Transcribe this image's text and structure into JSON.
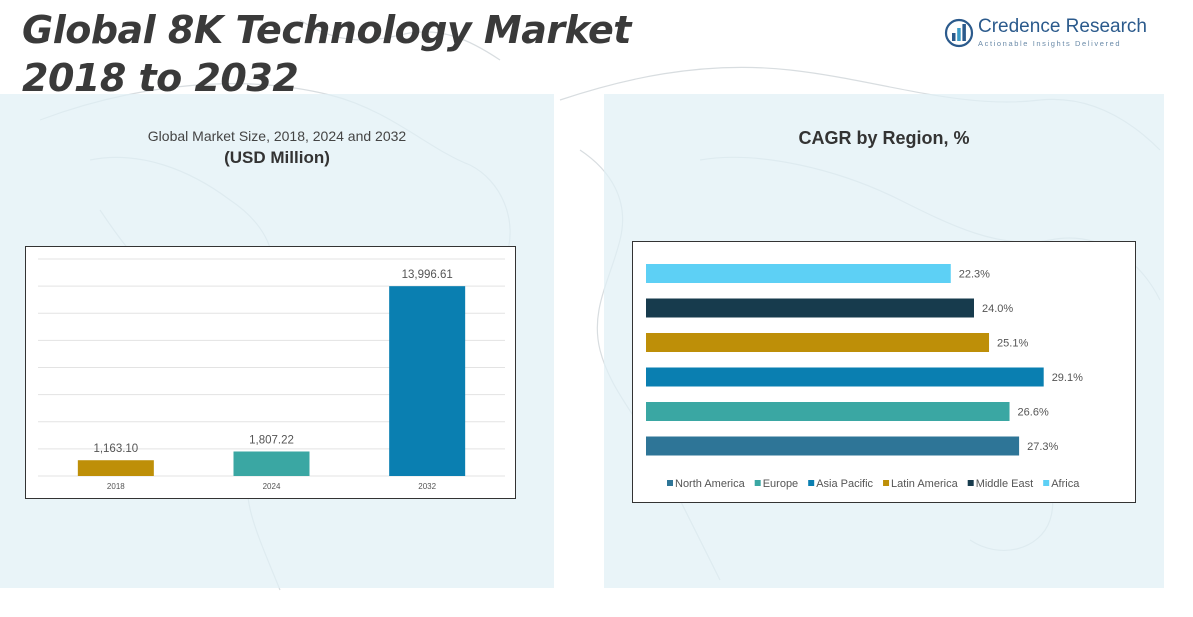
{
  "header": {
    "title_line1": "Global 8K Technology Market",
    "title_line2": "2018 to 2032"
  },
  "logo": {
    "name": "Credence Research",
    "tagline": "Actionable Insights Delivered",
    "icon": "bar-chart-circle-icon"
  },
  "colors": {
    "north_america": "#2e7597",
    "europe": "#3aa7a3",
    "asia_pacific": "#0a7fb1",
    "latin_america": "#be8f08",
    "middle_east": "#173b4d",
    "africa": "#5dd0f5",
    "panel_bg": "#e1f0f5",
    "title": "#3a3a3a"
  },
  "chart_data": [
    {
      "type": "bar",
      "title": "Global Market Size, 2018, 2024 and 2032",
      "subtitle": "(USD Million)",
      "categories": [
        "2018",
        "2024",
        "2032"
      ],
      "values": [
        1163.1,
        1807.22,
        13996.61
      ],
      "labels": [
        "1,163.10",
        "1,807.22",
        "13,996.61"
      ],
      "bar_colors": [
        "#be8f08",
        "#3aa7a3",
        "#0a7fb1"
      ],
      "ylim": [
        0,
        16000
      ],
      "grid": true,
      "xlabel": "",
      "ylabel": ""
    },
    {
      "type": "bar",
      "orientation": "horizontal",
      "title": "CAGR by Region, %",
      "categories": [
        "Africa",
        "Middle East",
        "Latin America",
        "Asia Pacific",
        "Europe",
        "North America"
      ],
      "values": [
        22.3,
        24.0,
        25.1,
        29.1,
        26.6,
        27.3
      ],
      "labels": [
        "22.3%",
        "24.0%",
        "25.1%",
        "29.1%",
        "26.6%",
        "27.3%"
      ],
      "bar_colors": [
        "#5dd0f5",
        "#173b4d",
        "#be8f08",
        "#0a7fb1",
        "#3aa7a3",
        "#2e7597"
      ],
      "legend": [
        "North America",
        "Europe",
        "Asia Pacific",
        "Latin America",
        "Middle East",
        "Africa"
      ],
      "legend_colors": [
        "#2e7597",
        "#3aa7a3",
        "#0a7fb1",
        "#be8f08",
        "#173b4d",
        "#5dd0f5"
      ],
      "legend_position": "bottom",
      "xlim": [
        0,
        30
      ]
    }
  ]
}
